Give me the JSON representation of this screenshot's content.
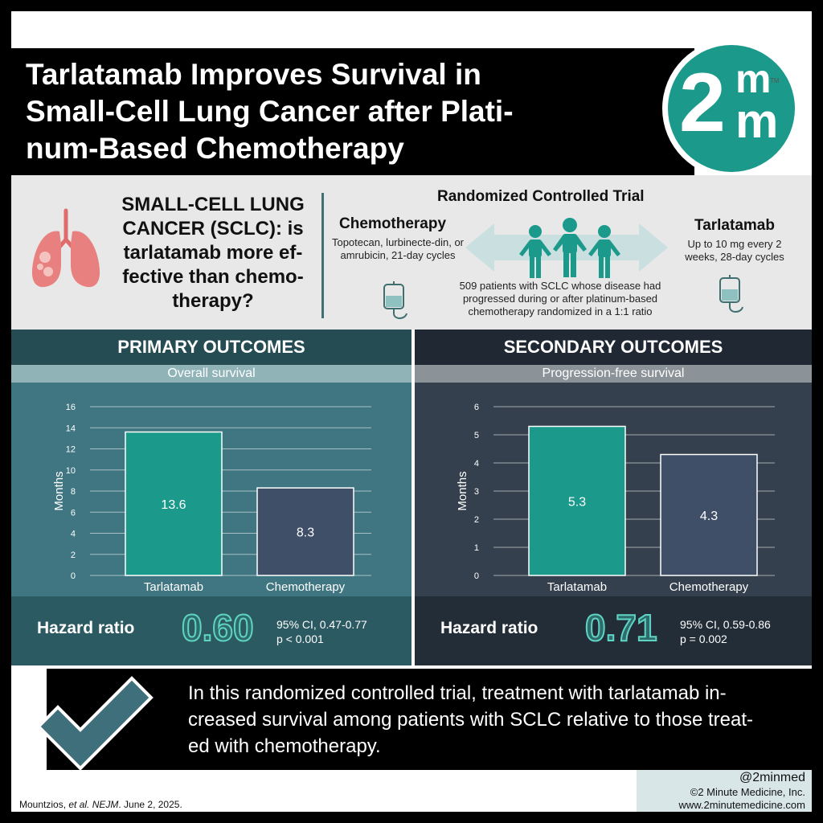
{
  "header": {
    "title": "Tarlatamab Improves Survival in\nSmall-Cell Lung Cancer after Plati-\nnum-Based Chemotherapy",
    "logo_number": "2",
    "logo_letter_top": "m",
    "logo_letter_bottom": "m",
    "logo_tm": "TM"
  },
  "trial": {
    "question": "SMALL-CELL LUNG CANCER (SCLC): is tarlatamab more ef-fective than chemo-therapy?",
    "heading": "Randomized Controlled Trial",
    "arm_left": {
      "name": "Chemotherapy",
      "description": "Topotecan, lurbinecte-din, or amrubicin, 21-day cycles"
    },
    "arm_right": {
      "name": "Tarlatamab",
      "description": "Up to 10 mg every 2 weeks, 28-day cycles"
    },
    "description": "509 patients with SCLC whose disease had progressed during or after platinum-based chemotherapy randomized in a 1:1 ratio"
  },
  "primary": {
    "heading": "PRIMARY OUTCOMES",
    "subheading": "Overall survival",
    "hr_label": "Hazard ratio",
    "hr_value": "0.60",
    "ci": "95% CI, 0.47-0.77",
    "p": "p < 0.001"
  },
  "secondary": {
    "heading": "SECONDARY OUTCOMES",
    "subheading": "Progression-free survival",
    "hr_label": "Hazard ratio",
    "hr_value": "0.71",
    "ci": "95% CI, 0.59-0.86",
    "p": "p = 0.002"
  },
  "chart_data": [
    {
      "type": "bar",
      "title": "Overall survival",
      "categories": [
        "Tarlatamab",
        "Chemotherapy"
      ],
      "values": [
        13.6,
        8.3
      ],
      "value_labels": [
        "13.6",
        "8.3"
      ],
      "ylabel": "Months",
      "ylim": [
        0,
        16
      ],
      "yticks": [
        0,
        2,
        4,
        6,
        8,
        10,
        12,
        14,
        16
      ],
      "grid": true,
      "colors": [
        "#1b9a8c",
        "#3f4f68"
      ]
    },
    {
      "type": "bar",
      "title": "Progression-free survival",
      "categories": [
        "Tarlatamab",
        "Chemotherapy"
      ],
      "values": [
        5.3,
        4.3
      ],
      "value_labels": [
        "5.3",
        "4.3"
      ],
      "ylabel": "Months",
      "ylim": [
        0,
        6
      ],
      "yticks": [
        0,
        1,
        2,
        3,
        4,
        5,
        6
      ],
      "grid": true,
      "colors": [
        "#1b9a8c",
        "#3f4f68"
      ]
    }
  ],
  "conclusion": "In this randomized controlled trial, treatment with tarlatamab in-\ncreased survival among patients with SCLC relative to those treat-\ned with chemotherapy.",
  "footer": {
    "citation_authors": "Mountzios, ",
    "citation_etal": "et al.",
    "citation_space": " ",
    "citation_journal": "NEJM",
    "citation_date": ". June 2, 2025.",
    "handle": "@2minmed",
    "copyright": "©2 Minute Medicine, Inc.",
    "website": "www.2minutemedicine.com"
  },
  "colors": {
    "brand_teal": "#1b9a8c",
    "chemo_bar": "#3f4f68",
    "primary_panel": "#3f7682",
    "secondary_panel": "#34404d"
  },
  "icons": [
    "lungs-icon",
    "double-arrow-icon",
    "people-icon",
    "iv-bag-icon",
    "checkmark-icon"
  ]
}
